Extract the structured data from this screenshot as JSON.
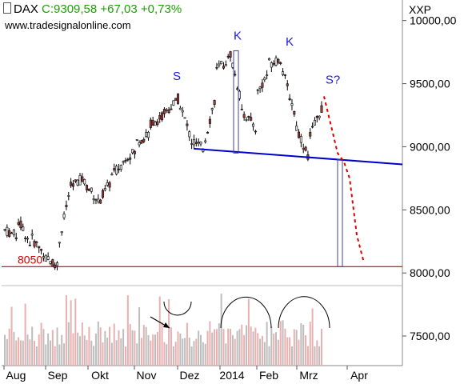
{
  "header": {
    "symbol": "DAX",
    "quote": "C:9309,58 +67,03 +0,73%",
    "source": "www.tradesignalonline.com",
    "currency": "XXP"
  },
  "chart_data": {
    "type": "candlestick",
    "ylim": [
      7900,
      10150
    ],
    "y_ticks": [
      "10000,00",
      "9500,00",
      "9000,00",
      "8500,00",
      "8000,00",
      "7500,00"
    ],
    "x_ticks": [
      "Aug",
      "Sep",
      "Okt",
      "Nov",
      "Dez",
      "2014",
      "Feb",
      "Mrz",
      "Apr"
    ],
    "support_level": {
      "value": 8050,
      "label": "8050"
    },
    "pattern_labels": [
      "S",
      "K",
      "K",
      "S?"
    ],
    "neckline": {
      "from": {
        "month": "Dez",
        "value": 8985
      },
      "to": {
        "month": "Apr",
        "value": 8860
      }
    },
    "price_path": [
      [
        8340,
        8290
      ],
      [
        8420,
        8220
      ],
      [
        8280,
        8150
      ],
      [
        8120,
        8060
      ],
      [
        8180,
        8700
      ],
      [
        8680,
        8760
      ],
      [
        8720,
        8580
      ],
      [
        8540,
        8720
      ],
      [
        8760,
        8880
      ],
      [
        8920,
        8960
      ],
      [
        9040,
        9100
      ],
      [
        9180,
        9240
      ],
      [
        9260,
        9360
      ],
      [
        9420,
        9100
      ],
      [
        9050,
        8990
      ],
      [
        8980,
        9420
      ],
      [
        9600,
        9700
      ],
      [
        9780,
        9300
      ],
      [
        9280,
        9150
      ],
      [
        9400,
        9600
      ],
      [
        9660,
        9700
      ],
      [
        9620,
        9250
      ],
      [
        9180,
        8920
      ],
      [
        9050,
        9310
      ]
    ],
    "volume_shape": "grey/red volume bars, mostly moderate with isolated spikes"
  },
  "colors": {
    "up": "#e8e8e8",
    "down": "#a04040",
    "neckline": "#0000cc",
    "support": "#cc0000",
    "projection": "#dd0000",
    "label_blue": "#1a1ae0",
    "quote_green": "#1aa300"
  }
}
